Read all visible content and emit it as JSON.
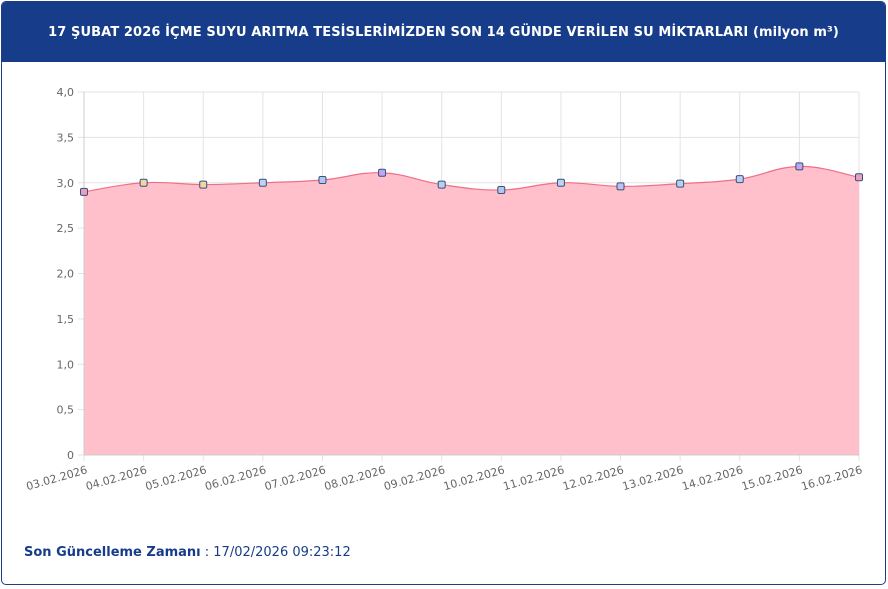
{
  "header": {
    "title": "17 ŞUBAT 2026 İÇME SUYU ARITMA TESİSLERİMİZDEN SON 14 GÜNDE VERİLEN SU MİKTARLARI (milyon m³)"
  },
  "footer": {
    "label": "Son Güncelleme Zamanı",
    "separator": " : ",
    "value": "17/02/2026 09:23:12"
  },
  "colors": {
    "header_bg": "#173c8a",
    "area_fill": "#ffc0cb",
    "line": "#ee6f86",
    "grid": "#e3e3e3"
  },
  "chart_data": {
    "type": "area",
    "x": [
      "03.02.2026",
      "04.02.2026",
      "05.02.2026",
      "06.02.2026",
      "07.02.2026",
      "08.02.2026",
      "09.02.2026",
      "10.02.2026",
      "11.02.2026",
      "12.02.2026",
      "13.02.2026",
      "14.02.2026",
      "15.02.2026",
      "16.02.2026"
    ],
    "values": [
      2.9,
      3.0,
      2.98,
      3.0,
      3.03,
      3.11,
      2.98,
      2.92,
      3.0,
      2.96,
      2.99,
      3.04,
      3.18,
      3.06
    ],
    "point_colors": [
      "#e8a0c0",
      "#f0d6a0",
      "#f0d6a0",
      "#b8d6f0",
      "#b0c8f0",
      "#c0a8f0",
      "#b8d0f0",
      "#b0c8f0",
      "#b8d6f0",
      "#c0c0f0",
      "#b8d0f0",
      "#b8d0f0",
      "#c0a8f0",
      "#e8a0c0"
    ],
    "yticks": [
      "0",
      "0,5",
      "1,0",
      "1,5",
      "2,0",
      "2,5",
      "3,0",
      "3,5",
      "4,0"
    ],
    "ylim": [
      0,
      4
    ],
    "grid": true,
    "legend": "none"
  }
}
